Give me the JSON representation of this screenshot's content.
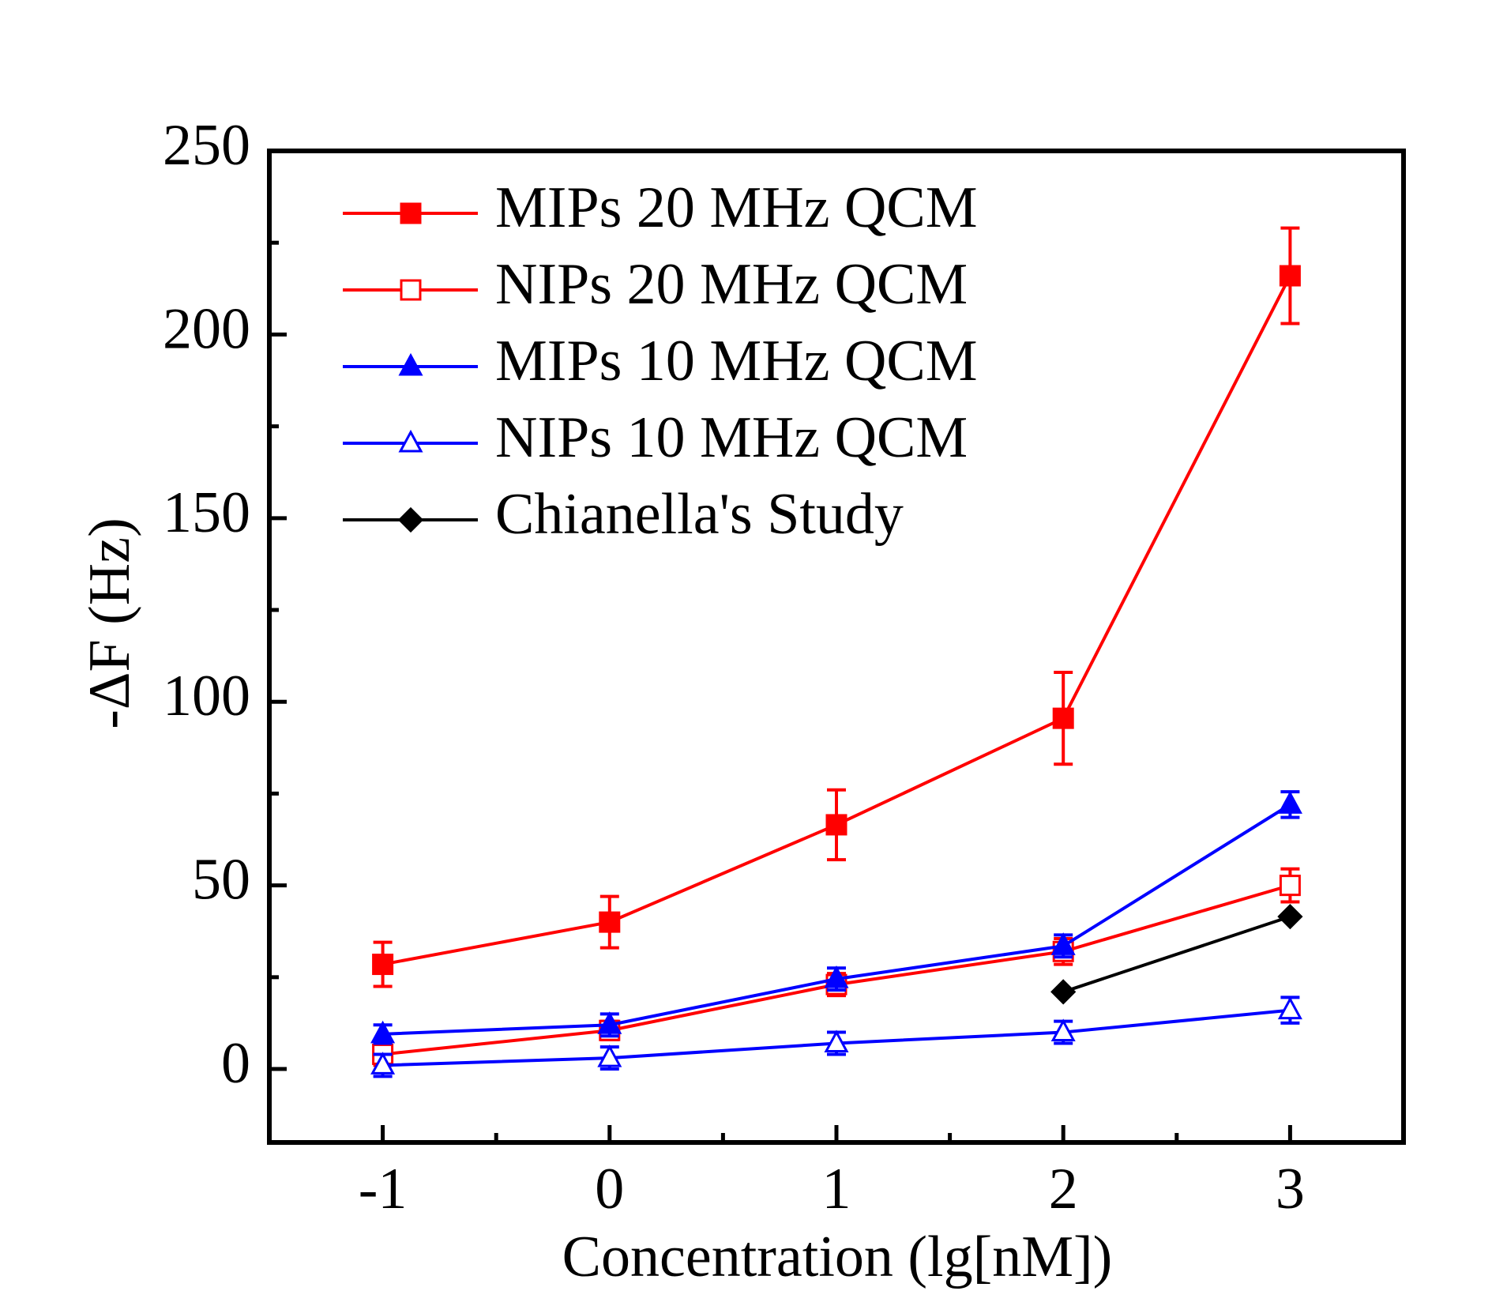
{
  "chart_data": {
    "type": "line",
    "xlabel": "Concentration (lg[nM])",
    "ylabel": "-ΔF (Hz)",
    "x": [
      -1,
      0,
      1,
      2,
      3
    ],
    "xlim": [
      -1.5,
      3.5
    ],
    "xticks": [
      -1,
      0,
      1,
      2,
      3
    ],
    "xminorticks": [
      -0.5,
      0.5,
      1.5,
      2.5
    ],
    "ylim": [
      -20,
      250
    ],
    "yticks": [
      0,
      50,
      100,
      150,
      200,
      250
    ],
    "yminorticks": [
      25,
      75,
      125,
      175,
      225
    ],
    "legend": "upper left",
    "series": [
      {
        "name": "MIPs 20 MHz QCM",
        "color": "#ff0000",
        "marker": "square",
        "filled": true,
        "values": [
          28.5,
          40,
          66.5,
          95.5,
          216
        ],
        "errors": [
          6,
          7,
          9.5,
          12.5,
          13
        ]
      },
      {
        "name": "NIPs 20 MHz QCM",
        "color": "#ff0000",
        "marker": "square",
        "filled": false,
        "values": [
          4,
          10.5,
          23,
          32,
          50
        ],
        "errors": [
          3,
          2.5,
          3,
          3.5,
          4.5
        ]
      },
      {
        "name": "MIPs 10 MHz QCM",
        "color": "#0000ff",
        "marker": "triangle",
        "filled": true,
        "values": [
          9.5,
          12,
          24.5,
          33.5,
          72
        ],
        "errors": [
          2.5,
          3,
          3,
          3,
          3.5
        ]
      },
      {
        "name": "NIPs 10 MHz QCM",
        "color": "#0000ff",
        "marker": "triangle",
        "filled": false,
        "values": [
          1,
          3,
          7,
          10,
          16
        ],
        "errors": [
          3,
          3,
          3,
          3,
          3.5
        ]
      },
      {
        "name": "Chianella's Study",
        "color": "#000000",
        "marker": "diamond",
        "filled": true,
        "values": [
          null,
          null,
          null,
          21,
          41.5
        ]
      }
    ]
  }
}
